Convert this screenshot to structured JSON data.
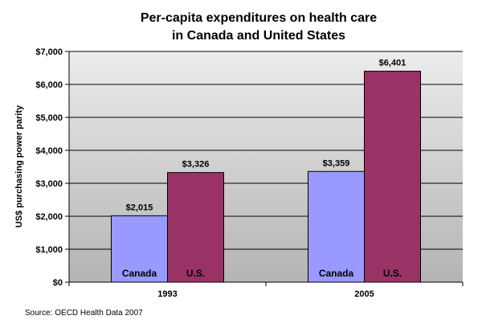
{
  "chart_data": {
    "type": "bar",
    "title_lines": [
      "Per-capita expenditures on health care",
      "in Canada and United States"
    ],
    "categories": [
      "1993",
      "2005"
    ],
    "series": [
      {
        "name": "Canada",
        "values": [
          2015,
          3359
        ],
        "value_labels": [
          "$2,015",
          "$3,359"
        ],
        "color": "#9999FF"
      },
      {
        "name": "U.S.",
        "values": [
          3326,
          6401
        ],
        "value_labels": [
          "$3,326",
          "$6,401"
        ],
        "color": "#993366"
      }
    ],
    "ylabel": "US$ purchasing power parity",
    "xlabel": "",
    "ylim": [
      0,
      7000
    ],
    "yticks": [
      0,
      1000,
      2000,
      3000,
      4000,
      5000,
      6000,
      7000
    ],
    "ytick_labels": [
      "$0",
      "$1,000",
      "$2,000",
      "$3,000",
      "$4,000",
      "$5,000",
      "$6,000",
      "$7,000"
    ],
    "grid": true,
    "legend": "none",
    "source": "Source: OECD Health Data 2007",
    "plot_background": "#C0C0C0"
  }
}
